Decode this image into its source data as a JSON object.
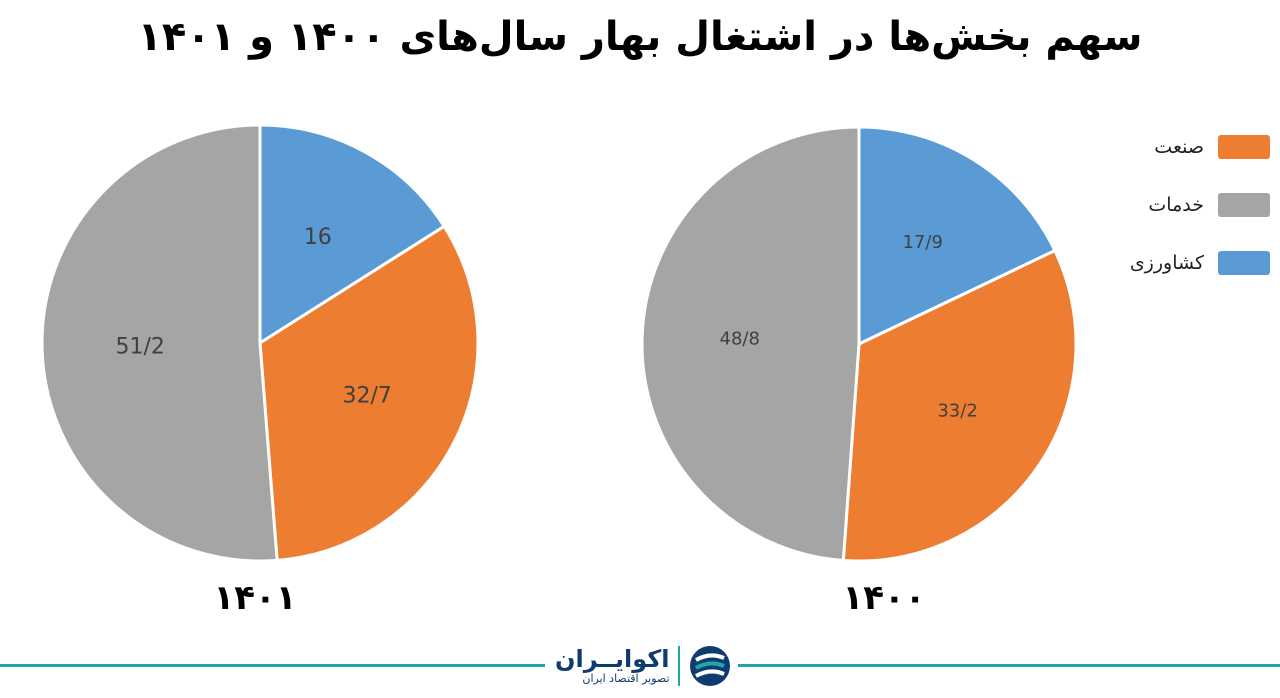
{
  "title": "سهم بخش‌ها در اشتغال بهار سال‌های ۱۴۰۰ و ۱۴۰۱",
  "colors": {
    "agriculture": "#5b9bd5",
    "industry": "#ed7d31",
    "services": "#a5a5a5"
  },
  "legend": [
    {
      "label": "صنعت",
      "color": "#ed7d31"
    },
    {
      "label": "خدمات",
      "color": "#a5a5a5"
    },
    {
      "label": "کشاورزی",
      "color": "#5b9bd5"
    }
  ],
  "chart_data": [
    {
      "type": "pie",
      "title": "۱۴۰۱",
      "slices": [
        {
          "name": "کشاورزی",
          "value": 16,
          "label": "16",
          "color": "#5b9bd5"
        },
        {
          "name": "صنعت",
          "value": 32.7,
          "label": "32/7",
          "color": "#ed7d31"
        },
        {
          "name": "خدمات",
          "value": 51.2,
          "label": "51/2",
          "color": "#a5a5a5"
        }
      ]
    },
    {
      "type": "pie",
      "title": "۱۴۰۰",
      "slices": [
        {
          "name": "کشاورزی",
          "value": 17.9,
          "label": "17/9",
          "color": "#5b9bd5"
        },
        {
          "name": "صنعت",
          "value": 33.2,
          "label": "33/2",
          "color": "#ed7d31"
        },
        {
          "name": "خدمات",
          "value": 48.8,
          "label": "48/8",
          "color": "#a5a5a5"
        }
      ]
    }
  ],
  "logo": {
    "name": "اکوایــران",
    "tagline": "تصویر اقتصاد ایران",
    "icon": "ecoiran-logo-icon"
  }
}
